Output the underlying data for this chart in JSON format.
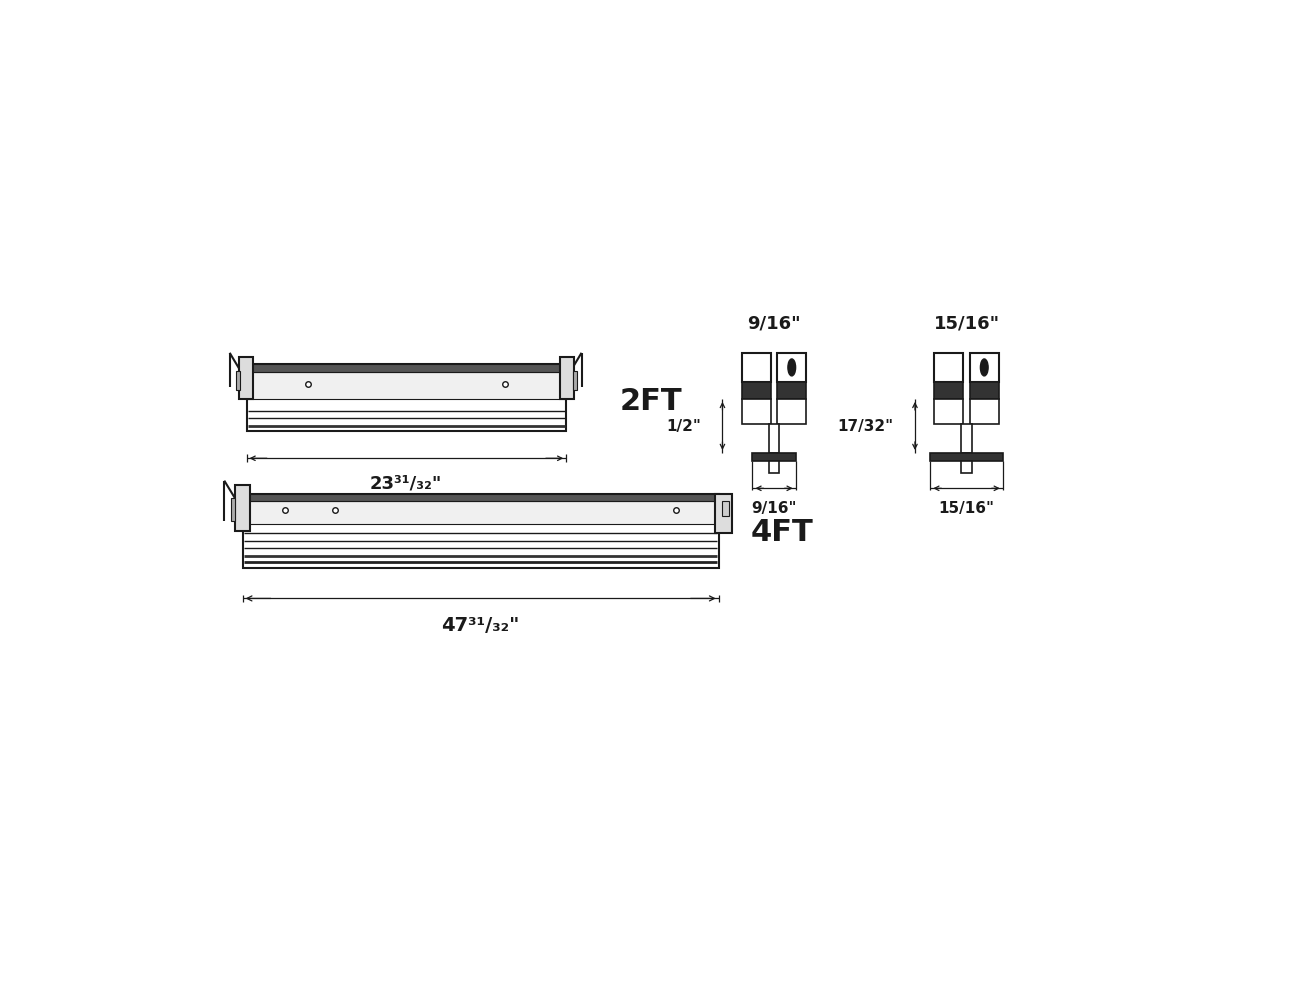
{
  "bg_color": "#ffffff",
  "line_color": "#1a1a1a",
  "fig_w": 13.0,
  "fig_h": 10.04,
  "label_2ft": "2FT",
  "label_4ft": "4FT",
  "dim_2ft": "23³¹/₃₂\"",
  "dim_4ft": "47³¹/₃₂\"",
  "label_916_top": "9/16\"",
  "label_1516_top": "15/16\"",
  "label_916_bot": "9/16\"",
  "label_1516_bot": "15/16\"",
  "label_half": "1/2\"",
  "label_1732": "17/32\""
}
